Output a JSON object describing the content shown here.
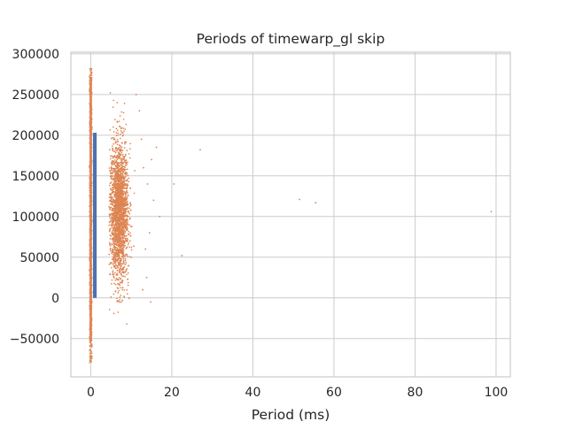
{
  "chart_data": {
    "type": "scatter",
    "title": "Periods of timewarp_gl skip",
    "xlabel": "Period (ms)",
    "ylabel": "",
    "xlim": [
      -4.9,
      103.5
    ],
    "ylim": [
      -97000,
      302000
    ],
    "xticks": [
      0,
      20,
      40,
      60,
      80,
      100
    ],
    "yticks": [
      -50000,
      0,
      50000,
      100000,
      150000,
      200000,
      250000,
      300000
    ],
    "xtick_labels": [
      "0",
      "20",
      "40",
      "60",
      "80",
      "100"
    ],
    "ytick_labels": [
      "−50000",
      "0",
      "50000",
      "100000",
      "150000",
      "200000",
      "250000",
      "300000"
    ],
    "grid": true,
    "legend": "none",
    "colors": {
      "series_blue": "#4c72b0",
      "series_orange": "#dd8452",
      "grid": "#cccccc",
      "text": "#262626"
    },
    "series": [
      {
        "kind": "bar",
        "x": 1.0,
        "width": 0.9,
        "y_range": [
          0,
          203000
        ]
      },
      {
        "kind": "cluster",
        "x_center": 7.0,
        "x_spread": 2.0,
        "y_center": 105000,
        "y_spread": 55000,
        "y_range": [
          -62000,
          262000
        ],
        "count": 2200
      },
      {
        "kind": "near-zero-column",
        "x": 0.0,
        "y_range": [
          -80000,
          282000
        ],
        "count": 500
      },
      {
        "kind": "outliers",
        "points": [
          [
            12.5,
            195000
          ],
          [
            13.0,
            160000
          ],
          [
            14.0,
            140000
          ],
          [
            15.5,
            120000
          ],
          [
            16.2,
            185000
          ],
          [
            13.5,
            60000
          ],
          [
            14.5,
            80000
          ],
          [
            12.0,
            230000
          ],
          [
            11.2,
            250000
          ],
          [
            15.0,
            170000
          ],
          [
            17.0,
            100000
          ],
          [
            20.5,
            140000
          ],
          [
            22.5,
            52000
          ],
          [
            27.0,
            182000
          ],
          [
            51.5,
            121000
          ],
          [
            55.5,
            117000
          ],
          [
            98.8,
            106000
          ],
          [
            13.8,
            25000
          ],
          [
            12.8,
            10000
          ],
          [
            14.8,
            -5000
          ]
        ]
      }
    ]
  }
}
